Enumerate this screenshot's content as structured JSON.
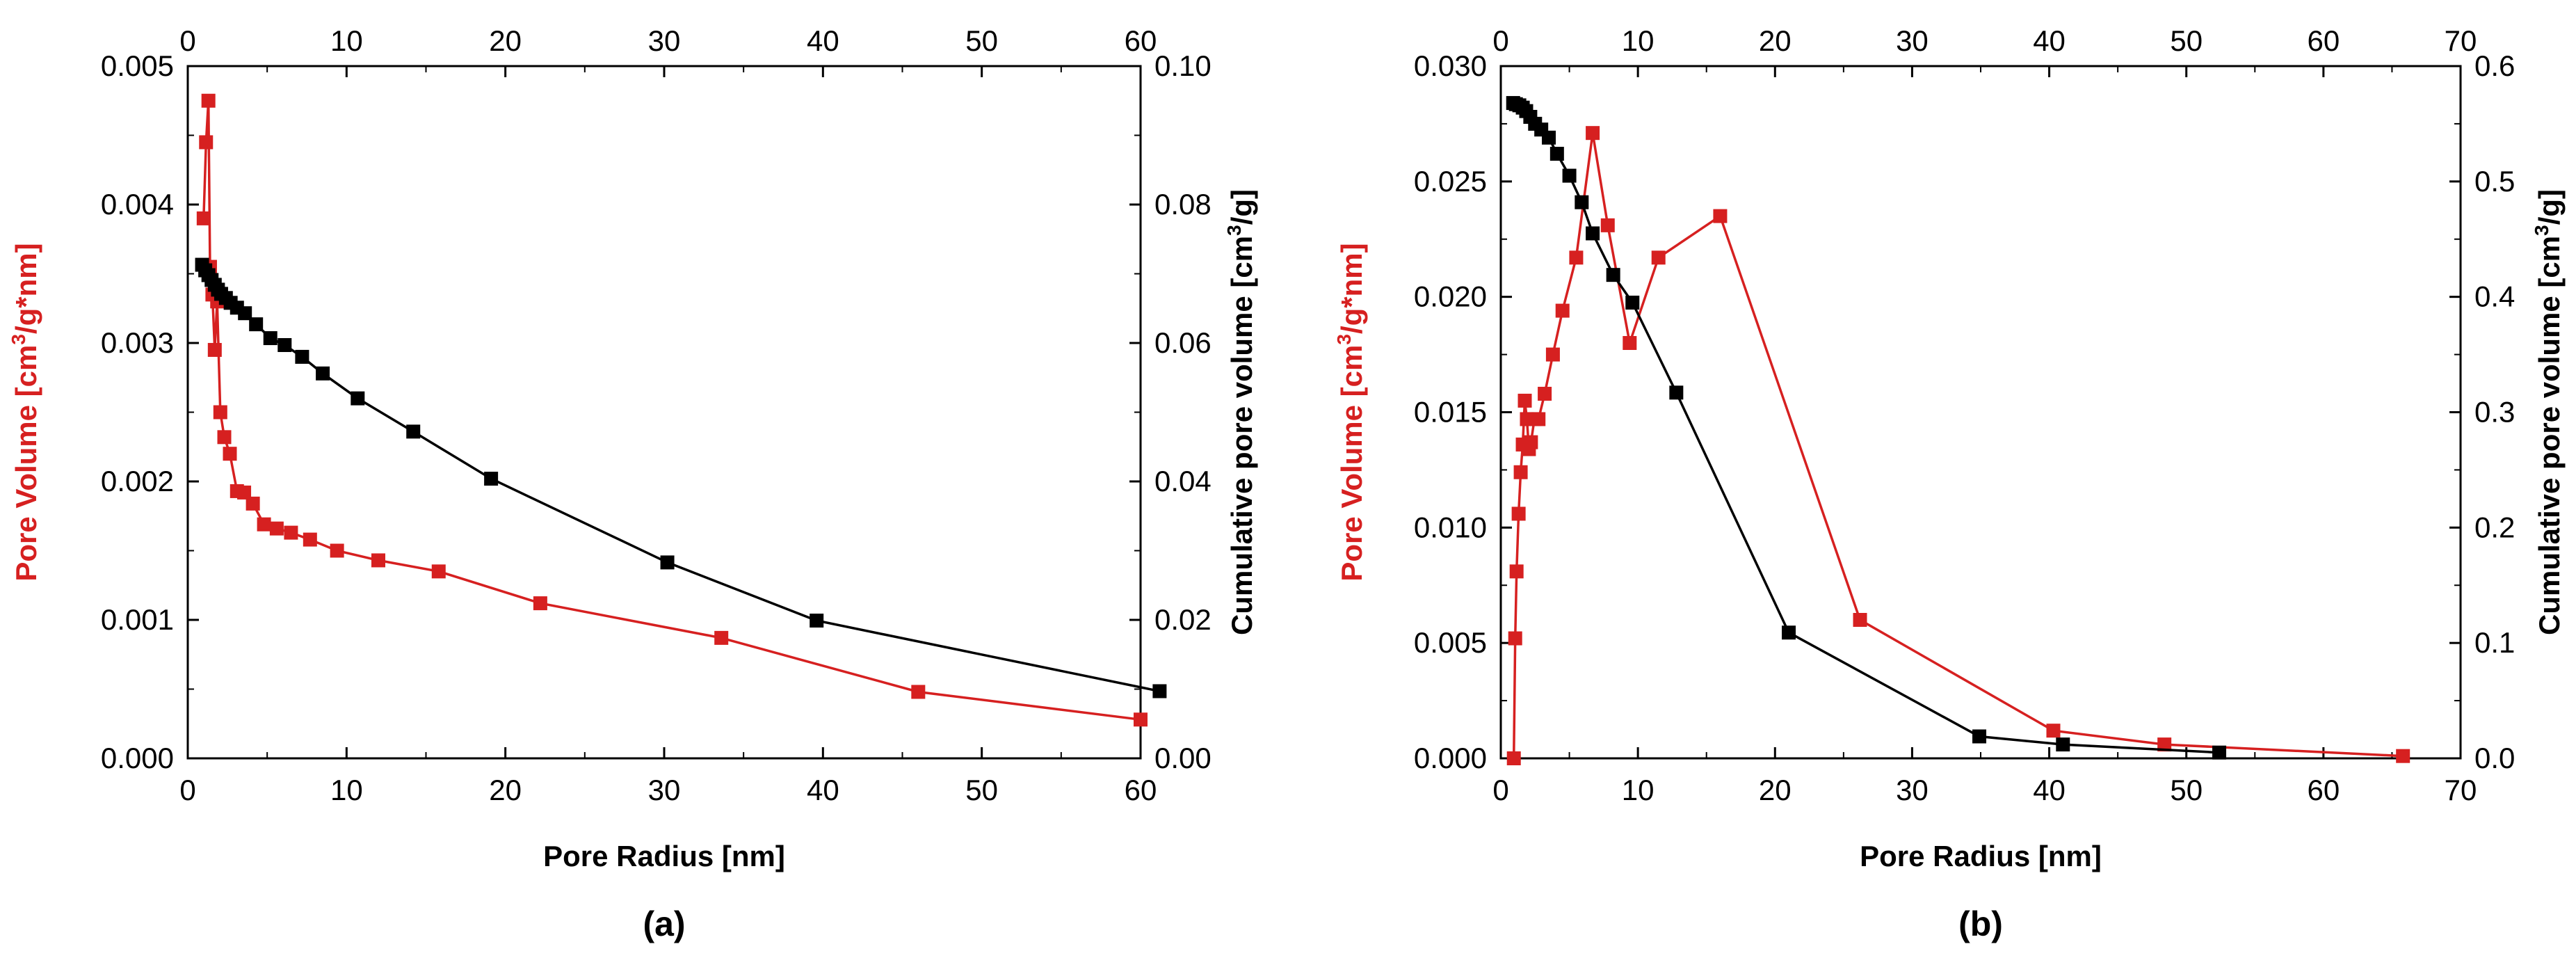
{
  "chart_data": [
    {
      "type": "line",
      "panel_label": "(a)",
      "xlabel": "Pore Radius [nm]",
      "ylabel_left_pre": "Pore Volume [cm",
      "ylabel_left_sup": "3",
      "ylabel_left_post": "/g*nm]",
      "ylabel_right_pre": "Cumulative pore volume [cm",
      "ylabel_right_sup": "3",
      "ylabel_right_post": "/g]",
      "xlim": [
        0,
        60
      ],
      "ylim_left": [
        0,
        0.005
      ],
      "ylim_right": [
        0,
        0.1
      ],
      "x_ticks": [
        "0",
        "10",
        "20",
        "30",
        "40",
        "50",
        "60"
      ],
      "y_left_ticks": [
        "0.000",
        "0.001",
        "0.002",
        "0.003",
        "0.004",
        "0.005"
      ],
      "y_right_ticks": [
        "0.00",
        "0.02",
        "0.04",
        "0.06",
        "0.08",
        "0.10"
      ],
      "colors": {
        "left_series": "#d62020",
        "right_series": "#000000"
      },
      "series": [
        {
          "name": "Pore Volume",
          "axis": "left",
          "color": "#d62020",
          "x": [
            1.0,
            1.15,
            1.3,
            1.4,
            1.55,
            1.7,
            1.85,
            2.05,
            2.3,
            2.65,
            3.1,
            3.55,
            4.1,
            4.8,
            5.6,
            6.5,
            7.7,
            9.4,
            12.0,
            15.8,
            22.2,
            33.6,
            46.0,
            60.0
          ],
          "y": [
            0.0039,
            0.00445,
            0.00475,
            0.00355,
            0.00335,
            0.00295,
            0.0033,
            0.0025,
            0.00232,
            0.0022,
            0.00193,
            0.00192,
            0.00184,
            0.00169,
            0.00166,
            0.00163,
            0.00158,
            0.0015,
            0.00143,
            0.00135,
            0.00112,
            0.00087,
            0.00048,
            0.00028
          ]
        },
        {
          "name": "Cumulative pore volume",
          "axis": "right",
          "color": "#000000",
          "x": [
            0.9,
            1.1,
            1.3,
            1.5,
            1.7,
            1.9,
            2.1,
            2.4,
            2.7,
            3.1,
            3.6,
            4.3,
            5.2,
            6.1,
            7.2,
            8.5,
            10.7,
            14.2,
            19.1,
            30.2,
            39.6,
            61.2
          ],
          "y": [
            0.0713,
            0.0705,
            0.0698,
            0.0691,
            0.0684,
            0.0677,
            0.0671,
            0.0665,
            0.0658,
            0.0651,
            0.0643,
            0.0627,
            0.0607,
            0.0597,
            0.058,
            0.0556,
            0.052,
            0.0472,
            0.0404,
            0.0283,
            0.0199,
            0.0097
          ]
        }
      ]
    },
    {
      "type": "line",
      "panel_label": "(b)",
      "xlabel": "Pore Radius [nm]",
      "ylabel_left_pre": "Pore Volume [cm",
      "ylabel_left_sup": "3",
      "ylabel_left_post": "/g*nm]",
      "ylabel_right_pre": "Cumulative pore volume [cm",
      "ylabel_right_sup": "3",
      "ylabel_right_post": "/g]",
      "xlim": [
        0,
        70
      ],
      "ylim_left": [
        0,
        0.03
      ],
      "ylim_right": [
        0,
        0.6
      ],
      "x_ticks": [
        "0",
        "10",
        "20",
        "30",
        "40",
        "50",
        "60",
        "70"
      ],
      "y_left_ticks": [
        "0.000",
        "0.005",
        "0.010",
        "0.015",
        "0.020",
        "0.025",
        "0.030"
      ],
      "y_right_ticks": [
        "0.0",
        "0.1",
        "0.2",
        "0.3",
        "0.4",
        "0.5",
        "0.6"
      ],
      "colors": {
        "left_series": "#d62020",
        "right_series": "#000000"
      },
      "series": [
        {
          "name": "Pore Volume",
          "axis": "left",
          "color": "#d62020",
          "x": [
            0.95,
            1.05,
            1.15,
            1.3,
            1.45,
            1.6,
            1.75,
            1.9,
            2.05,
            2.2,
            2.45,
            2.75,
            3.2,
            3.8,
            4.5,
            5.5,
            6.7,
            7.8,
            9.4,
            11.5,
            16.0,
            26.2,
            40.3,
            48.4,
            65.8
          ],
          "y": [
            0.0,
            0.0052,
            0.0081,
            0.0106,
            0.0124,
            0.0136,
            0.0155,
            0.0147,
            0.0134,
            0.0137,
            0.0147,
            0.0147,
            0.0158,
            0.0175,
            0.0194,
            0.0217,
            0.0271,
            0.0231,
            0.018,
            0.0217,
            0.0235,
            0.006,
            0.0012,
            0.0006,
            0.0001
          ]
        },
        {
          "name": "Cumulative pore volume",
          "axis": "right",
          "color": "#000000",
          "x": [
            0.9,
            1.1,
            1.35,
            1.6,
            1.85,
            2.15,
            2.5,
            2.95,
            3.5,
            4.1,
            5.0,
            5.9,
            6.7,
            8.2,
            9.6,
            12.8,
            21.0,
            34.9,
            41.0,
            52.4
          ],
          "y": [
            0.568,
            0.567,
            0.566,
            0.564,
            0.561,
            0.556,
            0.55,
            0.545,
            0.538,
            0.524,
            0.505,
            0.482,
            0.455,
            0.419,
            0.395,
            0.317,
            0.109,
            0.019,
            0.012,
            0.005
          ]
        }
      ]
    }
  ]
}
